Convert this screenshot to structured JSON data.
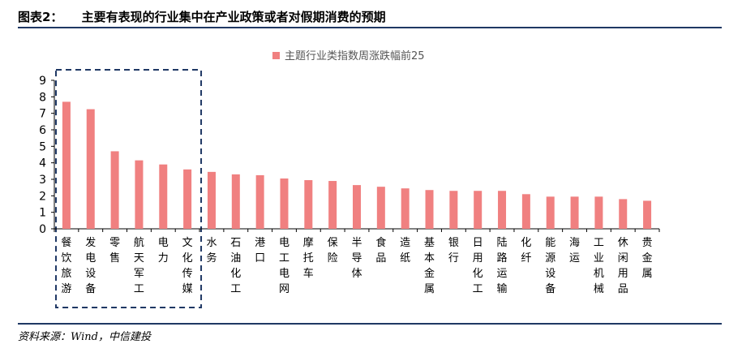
{
  "header": {
    "figure_number": "图表2：",
    "title": "主要有表现的行业集中在产业政策或者对假期消费的预期"
  },
  "source": "资料来源：Wind，中信建投",
  "colors": {
    "bar": "#f08080",
    "rule": "#1f3864",
    "highlight_box": "#1f3864",
    "axis": "#000000"
  },
  "chart_data": {
    "type": "bar",
    "legend": "主题行业类指数周涨跌幅前25",
    "legend_placement": "top-center",
    "grid": false,
    "ylim": [
      0,
      9
    ],
    "yticks": [
      "0",
      "1",
      "2",
      "3",
      "4",
      "5",
      "6",
      "7",
      "8",
      "9"
    ],
    "categories": [
      "餐饮旅游",
      "发电设备",
      "零售",
      "航天军工",
      "电力",
      "文化传媒",
      "水务",
      "石油化工",
      "港口",
      "电工电网",
      "摩托车",
      "保险",
      "半导体",
      "食品",
      "造纸",
      "基本金属",
      "银行",
      "日用化工",
      "陆路运输",
      "化纤",
      "能源设备",
      "海运",
      "工业机械",
      "休闲用品",
      "贵金属"
    ],
    "values": [
      7.7,
      7.25,
      4.7,
      4.15,
      3.9,
      3.6,
      3.45,
      3.3,
      3.25,
      3.05,
      2.95,
      2.9,
      2.65,
      2.55,
      2.45,
      2.35,
      2.3,
      2.3,
      2.3,
      2.1,
      1.95,
      1.95,
      1.95,
      1.8,
      1.7
    ],
    "highlighted_categories": [
      "餐饮旅游",
      "发电设备",
      "零售",
      "航天军工",
      "电力",
      "文化传媒"
    ]
  }
}
